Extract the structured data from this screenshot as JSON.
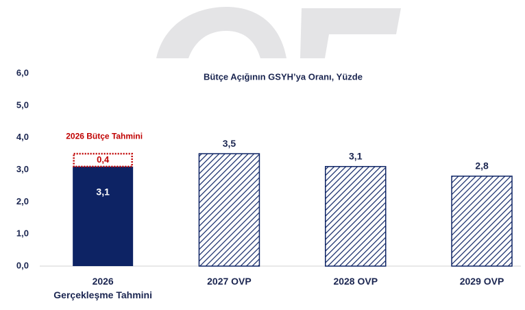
{
  "chart_data": {
    "type": "bar",
    "title": "Bütçe Açığının GSYH’ya Oranı, Yüzde",
    "categories": [
      "2026\nGerçekleşme Tahmini",
      "2027 OVP",
      "2028 OVP",
      "2029 OVP"
    ],
    "series": [
      {
        "color": "#0d2364",
        "patterns": [
          "solid",
          "hatched",
          "hatched",
          "hatched"
        ],
        "values": [
          3.1,
          3.5,
          3.1,
          2.8
        ],
        "value_labels": [
          "3,1",
          "3,5",
          "3,1",
          "2,8"
        ]
      },
      {
        "name": "2026 Bütçe Tahmini",
        "color": "#c00000",
        "style": "dotted",
        "values": [
          0.4,
          null,
          null,
          null
        ],
        "value_labels": [
          "0,4",
          null,
          null,
          null
        ]
      }
    ],
    "ylim": [
      0,
      6
    ],
    "yticks": [
      {
        "value": 0,
        "label": "0,0"
      },
      {
        "value": 1,
        "label": "1,0"
      },
      {
        "value": 2,
        "label": "2,0"
      },
      {
        "value": 3,
        "label": "3,0"
      },
      {
        "value": 4,
        "label": "4,0"
      },
      {
        "value": 5,
        "label": "5,0"
      },
      {
        "value": 6,
        "label": "6,0"
      }
    ]
  }
}
